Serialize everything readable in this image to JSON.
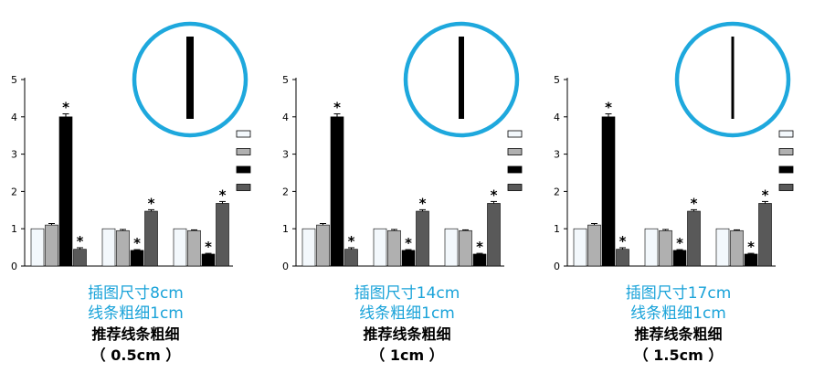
{
  "colors": {
    "circle": "#1ea8dd",
    "star": "#000000"
  },
  "panels": [
    {
      "caption_lines": [
        "插图尺寸8cm",
        "线条粗细1cm"
      ],
      "recommend_lines": [
        "推荐线条粗细",
        "（ 0.5cm ）"
      ],
      "marker_width": 8
    },
    {
      "caption_lines": [
        "插图尺寸14cm",
        "线条粗细1cm"
      ],
      "recommend_lines": [
        "推荐线条粗细",
        "（ 1cm ）"
      ],
      "marker_width": 6
    },
    {
      "caption_lines": [
        "插图尺寸17cm",
        "线条粗细1cm"
      ],
      "recommend_lines": [
        "推荐线条粗细",
        "（ 1.5cm ）"
      ],
      "marker_width": 3
    }
  ],
  "chart_data": [
    {
      "type": "bar",
      "ylim": [
        0,
        5
      ],
      "y_ticks": [
        "0",
        "1",
        "2",
        "3",
        "4",
        "5"
      ],
      "series": [
        {
          "color": "#f3f8fc",
          "values": [
            1.0,
            1.0,
            1.0
          ],
          "errors": [
            0.0,
            0.0,
            0.0
          ]
        },
        {
          "color": "#b0b0b0",
          "values": [
            1.1,
            0.95,
            0.95
          ],
          "errors": [
            0.04,
            0.03,
            0.02
          ]
        },
        {
          "color": "#000000",
          "values": [
            4.0,
            0.42,
            0.32
          ],
          "errors": [
            0.08,
            0.02,
            0.02
          ],
          "significant": [
            true,
            true,
            true
          ]
        },
        {
          "color": "#595959",
          "values": [
            0.45,
            1.47,
            1.68
          ],
          "errors": [
            0.04,
            0.04,
            0.05
          ],
          "significant": [
            true,
            true,
            true
          ]
        }
      ]
    },
    {
      "type": "bar",
      "ylim": [
        0,
        5
      ],
      "y_ticks": [
        "0",
        "1",
        "2",
        "3",
        "4",
        "5"
      ],
      "series": [
        {
          "color": "#f3f8fc",
          "values": [
            1.0,
            1.0,
            1.0
          ],
          "errors": [
            0.0,
            0.0,
            0.0
          ]
        },
        {
          "color": "#b0b0b0",
          "values": [
            1.1,
            0.95,
            0.95
          ],
          "errors": [
            0.04,
            0.03,
            0.02
          ]
        },
        {
          "color": "#000000",
          "values": [
            4.0,
            0.42,
            0.32
          ],
          "errors": [
            0.08,
            0.02,
            0.02
          ],
          "significant": [
            true,
            true,
            true
          ]
        },
        {
          "color": "#595959",
          "values": [
            0.45,
            1.47,
            1.68
          ],
          "errors": [
            0.04,
            0.04,
            0.05
          ],
          "significant": [
            true,
            true,
            true
          ]
        }
      ]
    },
    {
      "type": "bar",
      "ylim": [
        0,
        5
      ],
      "y_ticks": [
        "0",
        "1",
        "2",
        "3",
        "4",
        "5"
      ],
      "series": [
        {
          "color": "#f3f8fc",
          "values": [
            1.0,
            1.0,
            1.0
          ],
          "errors": [
            0.0,
            0.0,
            0.0
          ]
        },
        {
          "color": "#b0b0b0",
          "values": [
            1.1,
            0.95,
            0.95
          ],
          "errors": [
            0.04,
            0.03,
            0.02
          ]
        },
        {
          "color": "#000000",
          "values": [
            4.0,
            0.42,
            0.32
          ],
          "errors": [
            0.08,
            0.02,
            0.02
          ],
          "significant": [
            true,
            true,
            true
          ]
        },
        {
          "color": "#595959",
          "values": [
            0.45,
            1.47,
            1.68
          ],
          "errors": [
            0.04,
            0.04,
            0.05
          ],
          "significant": [
            true,
            true,
            true
          ]
        }
      ]
    }
  ]
}
